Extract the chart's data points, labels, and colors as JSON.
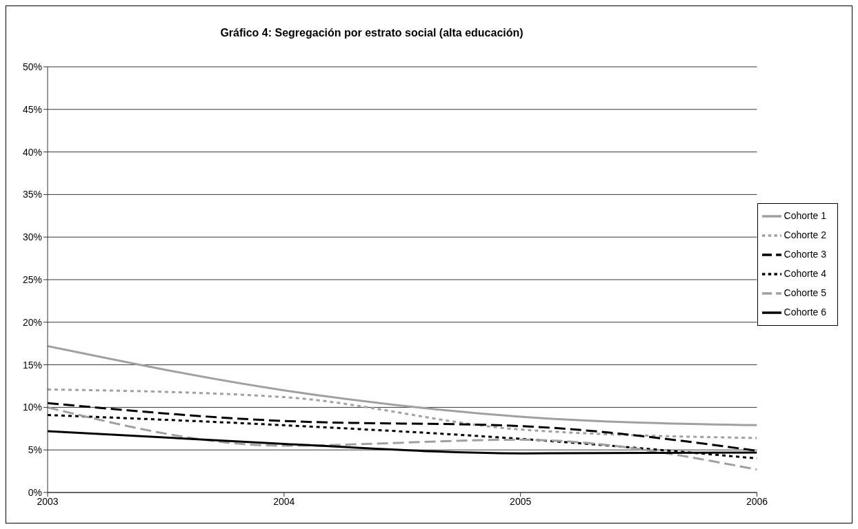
{
  "chart_data": {
    "type": "line",
    "title": "Gráfico 4: Segregación por estrato social (alta educación)",
    "x": [
      2003,
      2004,
      2005,
      2006
    ],
    "xlim": [
      2003,
      2006
    ],
    "xticks": [
      2003,
      2004,
      2005,
      2006
    ],
    "ylim": [
      0,
      50
    ],
    "yticks": [
      {
        "value": 0,
        "label": "0%"
      },
      {
        "value": 5,
        "label": "5%"
      },
      {
        "value": 10,
        "label": "10%"
      },
      {
        "value": 15,
        "label": "15%"
      },
      {
        "value": 20,
        "label": "20%"
      },
      {
        "value": 25,
        "label": "25%"
      },
      {
        "value": 30,
        "label": "30%"
      },
      {
        "value": 35,
        "label": "35%"
      },
      {
        "value": 40,
        "label": "40%"
      },
      {
        "value": 45,
        "label": "45%"
      },
      {
        "value": 50,
        "label": "50%"
      }
    ],
    "grid": "y",
    "legend": "right",
    "marker": "none",
    "series": [
      {
        "name": "Cohorte 1",
        "color": "#a0a0a0",
        "line_style": "solid",
        "values": [
          17.2,
          12.0,
          8.9,
          7.9
        ]
      },
      {
        "name": "Cohorte 2",
        "color": "#a0a0a0",
        "line_style": "dotted",
        "values": [
          12.1,
          11.2,
          7.4,
          6.4
        ]
      },
      {
        "name": "Cohorte 3",
        "color": "#000000",
        "line_style": "dashed",
        "values": [
          10.5,
          8.4,
          7.8,
          4.9
        ]
      },
      {
        "name": "Cohorte 4",
        "color": "#000000",
        "line_style": "dotted",
        "values": [
          9.1,
          7.9,
          6.3,
          4.0
        ]
      },
      {
        "name": "Cohorte 5",
        "color": "#a0a0a0",
        "line_style": "dashed",
        "values": [
          10.0,
          5.5,
          6.2,
          2.7
        ]
      },
      {
        "name": "Cohorte 6",
        "color": "#000000",
        "line_style": "solid",
        "values": [
          7.2,
          5.7,
          4.6,
          4.7
        ]
      }
    ]
  }
}
